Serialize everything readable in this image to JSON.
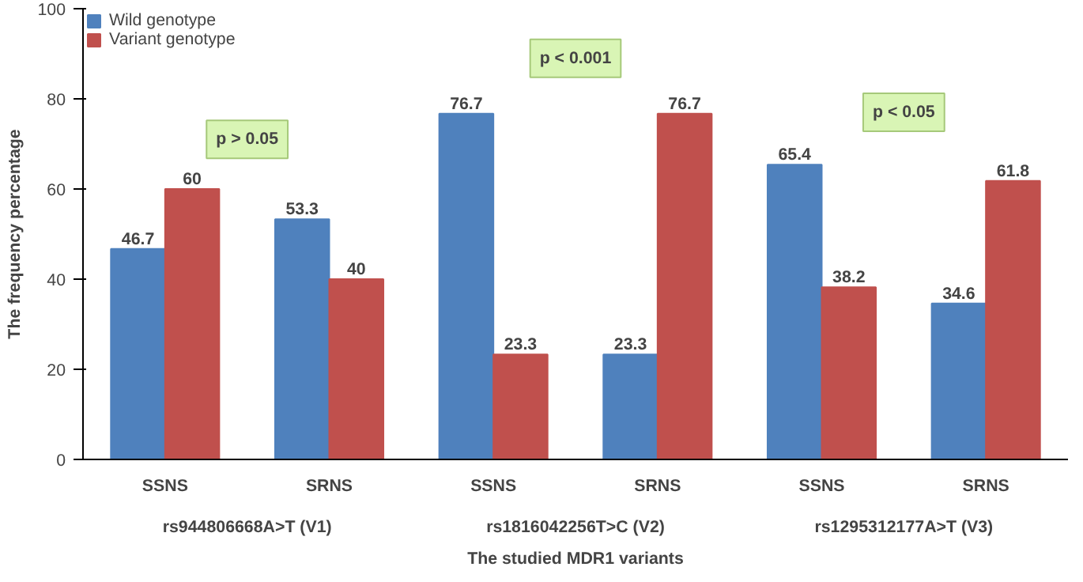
{
  "chart_data": {
    "type": "bar",
    "xlabel": "The studied MDR1 variants",
    "ylabel": "The frequency percentage",
    "categories": [
      "SSNS",
      "SRNS",
      "SSNS",
      "SRNS",
      "SSNS",
      "SRNS"
    ],
    "series": [
      {
        "name": "Wild genotype",
        "color": "#4f81bd",
        "values": [
          46.7,
          53.3,
          76.7,
          23.3,
          65.4,
          34.6
        ]
      },
      {
        "name": "Variant genotype",
        "color": "#c0504d",
        "values": [
          60,
          40,
          23.3,
          76.7,
          38.2,
          61.8
        ]
      }
    ],
    "ylim": [
      0,
      100
    ],
    "yticks": [
      0,
      20,
      40,
      60,
      80,
      100
    ],
    "data_labels": true,
    "legend": "top left",
    "grid": false,
    "annotations": [
      "rs944806668A>T (V1)",
      "rs1816042256T>C (V2)",
      "rs1295312177A>T (V3)",
      "p > 0.05",
      "p < 0.001",
      "p < 0.05"
    ]
  }
}
